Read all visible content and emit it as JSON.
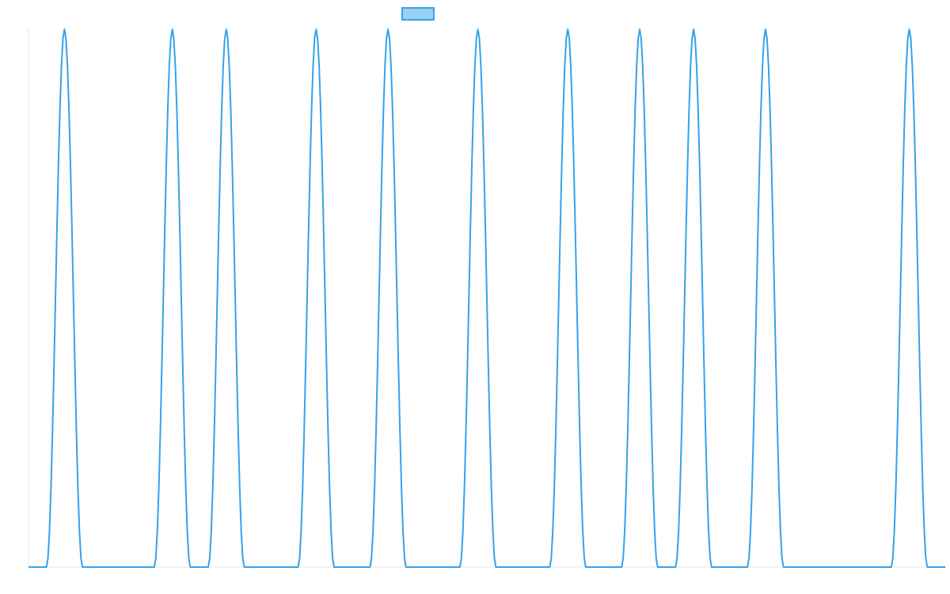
{
  "chart_data": {
    "type": "line",
    "title": "",
    "xlabel": "",
    "ylabel": "",
    "x_range": [
      0,
      51
    ],
    "y_range": [
      0,
      1
    ],
    "grid": false,
    "legend": {
      "placement": "top-center",
      "entries": [
        {
          "label": "",
          "swatch_fill": "#9ad0f5",
          "swatch_stroke": "#36a2eb"
        }
      ]
    },
    "series": [
      {
        "color": "#36a2eb",
        "shape": "narrow peaks returning to baseline",
        "peak_value": 1,
        "baseline_value": 0,
        "peak_x": [
          2,
          8,
          11,
          16,
          20,
          25,
          30,
          34,
          37,
          41,
          49
        ],
        "peak_half_width": 1
      }
    ]
  }
}
